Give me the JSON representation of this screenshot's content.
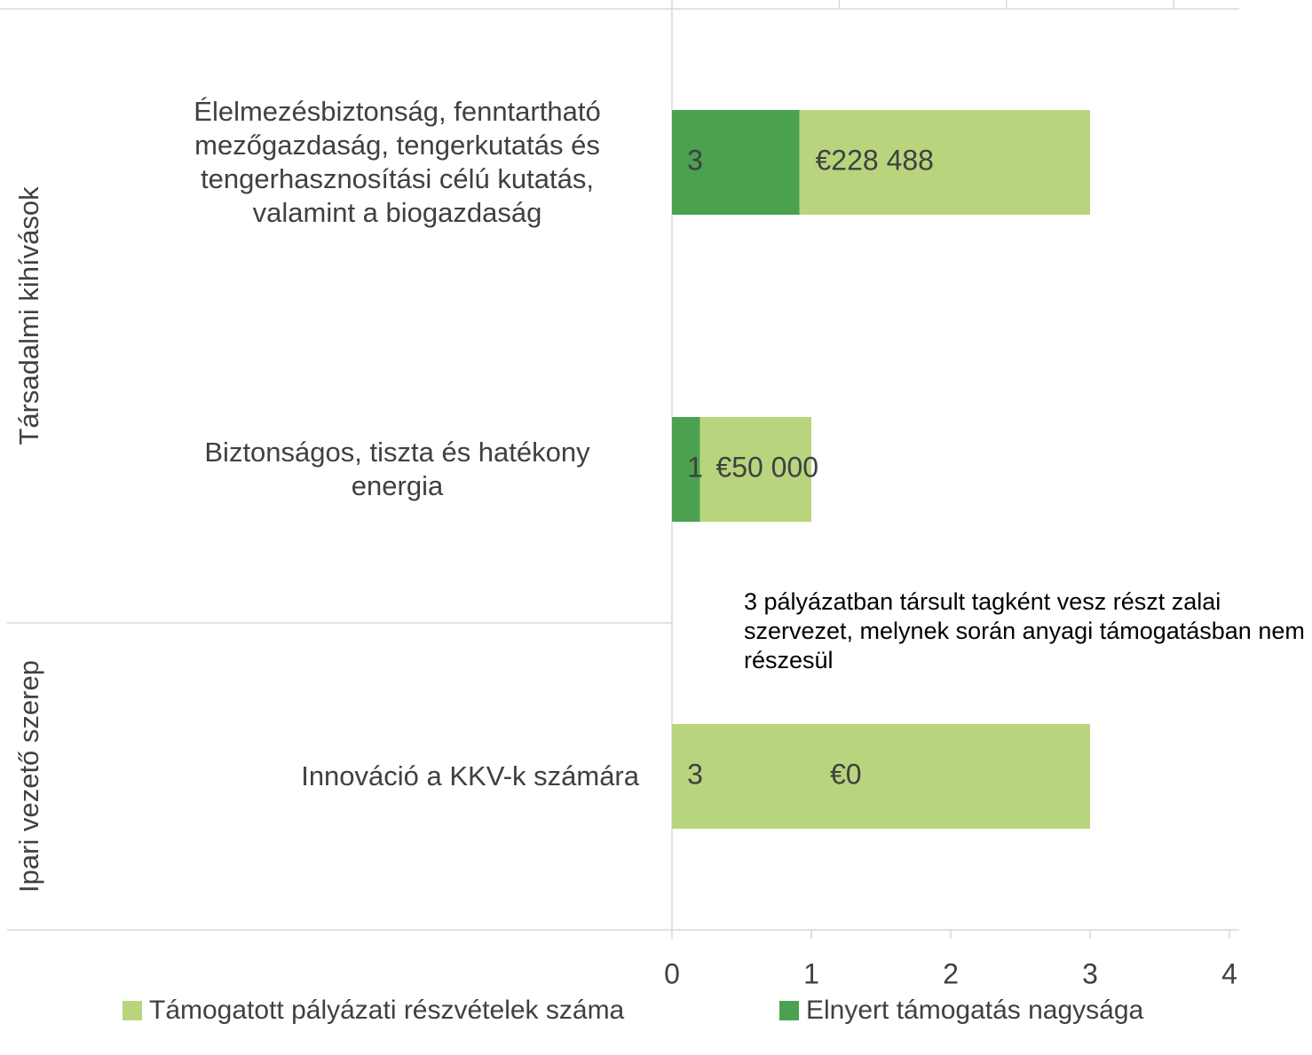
{
  "chart_data": {
    "type": "bar",
    "orientation": "horizontal",
    "categories": [
      "Élelmezésbiztonság, fenntartható mezőgazdaság, tengerkutatás és tengerhasznosítási célú kutatás, valamint a biogazdaság",
      "Biztonságos, tiszta és hatékony energia",
      "Innováció a KKV-k számára"
    ],
    "category_groups": [
      "Társadalmi kihívások",
      "Társadalmi kihívások",
      "Ipari vezető szerep"
    ],
    "series": [
      {
        "name": "Támogatott pályázati részvételek száma",
        "color": "#b8d57e",
        "values": [
          3,
          1,
          3
        ]
      },
      {
        "name": "Elnyert támogatás nagysága",
        "color": "#4ca150",
        "values": [
          228488,
          50000,
          0
        ],
        "value_labels": [
          "€228 488",
          "€50 000",
          "€0"
        ],
        "axis": "x2"
      }
    ],
    "xlim": [
      0,
      4
    ],
    "xticks": [
      0,
      1,
      2,
      3,
      4
    ],
    "x2lim": [
      0,
      1000000
    ],
    "x2ticks": [
      0,
      300000,
      600000,
      900000
    ],
    "annotation": "3 pályázatban társult tagként vesz részt zalai szervezet, melynek során anyagi támogatásban nem részesül",
    "legend": "bottom"
  }
}
